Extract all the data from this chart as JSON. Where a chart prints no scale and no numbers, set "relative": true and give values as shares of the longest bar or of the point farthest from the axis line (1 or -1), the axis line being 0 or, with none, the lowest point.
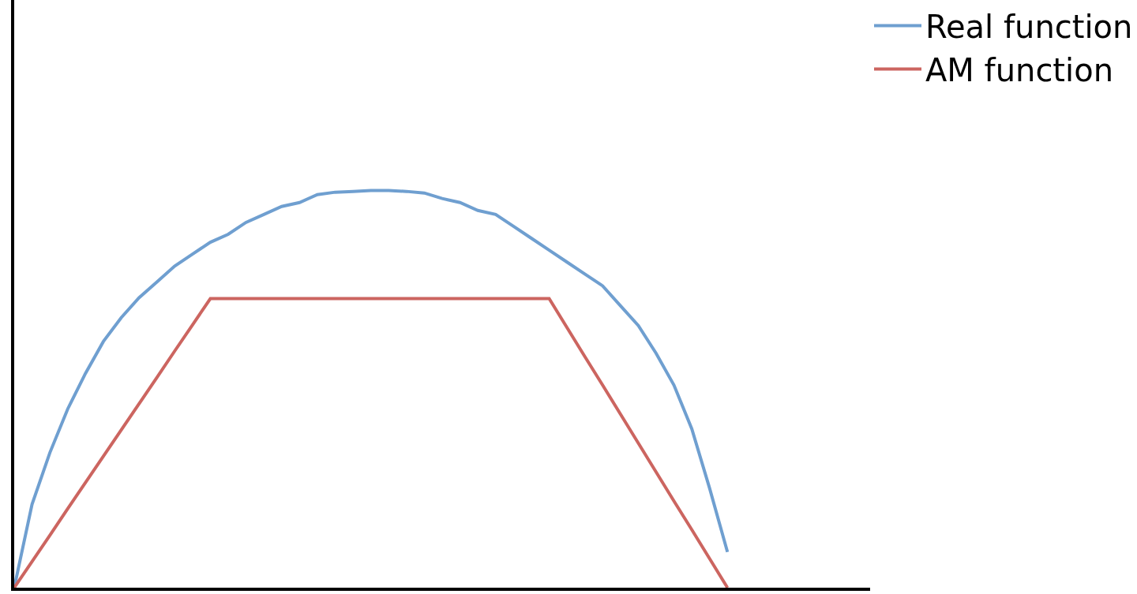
{
  "chart_data": {
    "type": "line",
    "relative": true,
    "legend": "top right",
    "marker": "none",
    "line_style": "solid",
    "categories": [
      null,
      null,
      null,
      null,
      null,
      null,
      null,
      null,
      null,
      null,
      null,
      null,
      null,
      null,
      null,
      null,
      null,
      null,
      null,
      null,
      null,
      null,
      null,
      null,
      null,
      null,
      null,
      null,
      null,
      null,
      null,
      null,
      null,
      null,
      null,
      null,
      null,
      null,
      null,
      null,
      null,
      null,
      null,
      null,
      null,
      null,
      null,
      null,
      null
    ],
    "series": [
      {
        "name": "Real function",
        "color": "#6f9fd0",
        "values": [
          0,
          0.21,
          0.34,
          0.45,
          0.54,
          0.62,
          0.68,
          0.73,
          0.77,
          0.81,
          0.84,
          0.87,
          0.89,
          0.92,
          0.94,
          0.96,
          0.97,
          0.99,
          0.996,
          0.998,
          1,
          1,
          0.998,
          0.994,
          0.98,
          0.97,
          0.95,
          0.94,
          0.91,
          0.88,
          0.85,
          0.82,
          0.79,
          0.76,
          0.71,
          0.66,
          0.59,
          0.51,
          0.4,
          0.25,
          0.09,
          null,
          null,
          null,
          null,
          null,
          null,
          null,
          null
        ]
      },
      {
        "name": "AM function",
        "color": "#cc6560",
        "values": [
          0,
          0.066,
          0.132,
          0.199,
          0.265,
          0.331,
          0.397,
          0.463,
          0.529,
          0.596,
          0.662,
          0.728,
          0.728,
          0.728,
          0.728,
          0.728,
          0.728,
          0.728,
          0.728,
          0.728,
          0.728,
          0.728,
          0.728,
          0.728,
          0.728,
          0.728,
          0.728,
          0.728,
          0.728,
          0.728,
          0.728,
          0.655,
          0.582,
          0.51,
          0.437,
          0.364,
          0.291,
          0.218,
          0.146,
          0.073,
          0,
          null,
          null,
          null,
          null,
          null,
          null,
          null,
          null
        ]
      }
    ]
  }
}
